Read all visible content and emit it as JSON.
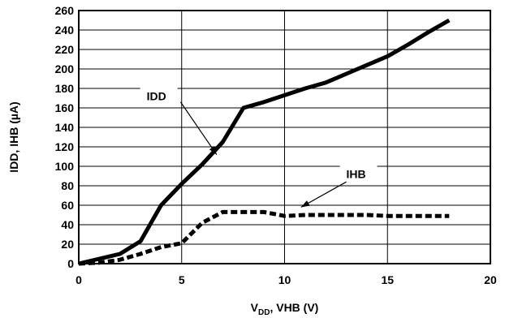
{
  "chart_data": {
    "type": "line",
    "xlabel_main": "V",
    "xlabel_sub": "DD",
    "xlabel_rest": ", VHB (V)",
    "ylabel": "IDD, IHB (µA)",
    "xlim": [
      0,
      20
    ],
    "ylim": [
      0,
      260
    ],
    "x_ticks": [
      0,
      5,
      10,
      15,
      20
    ],
    "y_ticks": [
      0,
      20,
      40,
      60,
      80,
      100,
      120,
      140,
      160,
      180,
      200,
      220,
      240,
      260
    ],
    "x_grid": [
      0,
      5,
      10,
      15,
      20
    ],
    "y_grid": [
      0,
      20,
      40,
      60,
      80,
      100,
      120,
      140,
      160,
      180,
      200,
      220,
      240,
      260
    ],
    "grid": true,
    "legend": "none",
    "series": [
      {
        "name": "IDD",
        "style": "solid",
        "color": "#000000",
        "x": [
          0,
          1,
          2,
          3,
          4,
          5,
          6,
          7,
          8,
          9,
          10,
          11,
          12,
          13,
          14,
          15,
          16,
          17,
          18
        ],
        "y": [
          0,
          5,
          10,
          23,
          60,
          82,
          102,
          125,
          160,
          166,
          173,
          180,
          186,
          195,
          204,
          213,
          225,
          238,
          250
        ]
      },
      {
        "name": "IHB",
        "style": "dashed",
        "color": "#000000",
        "x": [
          0,
          1,
          2,
          3,
          4,
          5,
          6,
          7,
          8,
          9,
          10,
          11,
          12,
          13,
          14,
          15,
          16,
          17,
          18
        ],
        "y": [
          0,
          1,
          4,
          10,
          17,
          21,
          42,
          53,
          53,
          53,
          49,
          50,
          50,
          50,
          50,
          49,
          49,
          49,
          49
        ]
      }
    ],
    "annotations": [
      {
        "text": "IDD",
        "label_at": [
          3.3,
          168
        ],
        "arrow_from": [
          4.95,
          166
        ],
        "arrow_to": [
          6.7,
          112
        ]
      },
      {
        "text": "IHB",
        "label_at": [
          13.0,
          88
        ],
        "arrow_from": [
          13.0,
          84
        ],
        "arrow_to": [
          10.8,
          58
        ]
      }
    ]
  }
}
